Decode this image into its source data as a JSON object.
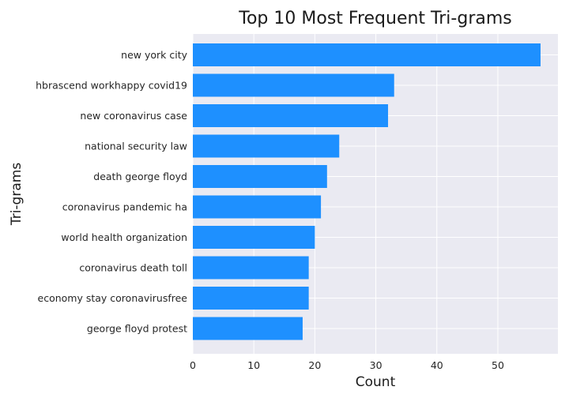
{
  "chart_data": {
    "type": "bar",
    "orientation": "horizontal",
    "title": "Top 10 Most Frequent Tri-grams",
    "xlabel": "Count",
    "ylabel": "Tri-grams",
    "categories": [
      "new york city",
      "hbrascend workhappy covid19",
      "new coronavirus case",
      "national security law",
      "death george floyd",
      "coronavirus pandemic ha",
      "world health organization",
      "coronavirus death toll",
      "economy stay coronavirusfree",
      "george floyd protest"
    ],
    "values": [
      57,
      33,
      32,
      24,
      22,
      21,
      20,
      19,
      19,
      18
    ],
    "xlim": [
      0,
      60
    ],
    "xticks": [
      0,
      10,
      20,
      30,
      40,
      50
    ],
    "grid": true,
    "colors": {
      "bar": "#1e90ff",
      "plot_background": "#eaeaf2",
      "grid": "#ffffff"
    }
  }
}
